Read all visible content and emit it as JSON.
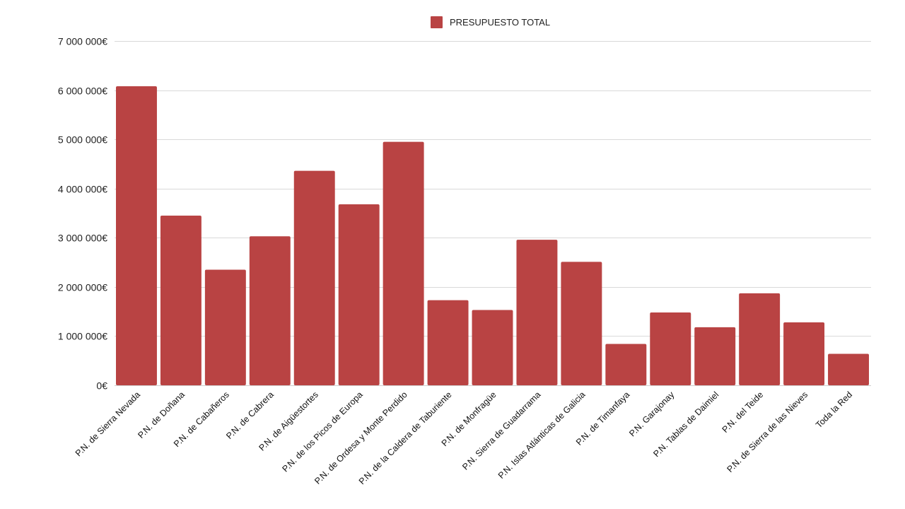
{
  "chart_data": {
    "type": "bar",
    "categories": [
      "P.N. de Sierra Nevada",
      "P.N. de Doñana",
      "P.N. de Cabañeros",
      "P.N. de Cabrera",
      "P.N. de Aigüestortes",
      "P.N. de los Picos de Europa",
      "P.N. de Ordesa y Monte Perdido",
      "P.N. de la Caldera de Taburiente",
      "P.N. de Monfragüe",
      "P.N. Sierra de Guadarrama",
      "P.N. Islas Atlánticas de Galicia",
      "P.N. de Timanfaya",
      "P.N. Garajonay",
      "P.N. Tablas de Daimiel",
      "P.N. del Teide",
      "P.N. de Sierra de las Nieves",
      "Toda la Red"
    ],
    "series": [
      {
        "name": "PRESUPUESTO TOTAL",
        "color": "#b94343",
        "values": [
          6080000,
          3450000,
          2350000,
          3030000,
          4360000,
          3680000,
          4950000,
          1730000,
          1530000,
          2960000,
          2510000,
          840000,
          1480000,
          1180000,
          1870000,
          1280000,
          640000
        ]
      }
    ],
    "y_ticks": [
      {
        "value": 0,
        "label": "0€"
      },
      {
        "value": 1000000,
        "label": "1 000 000€"
      },
      {
        "value": 2000000,
        "label": "2 000 000€"
      },
      {
        "value": 3000000,
        "label": "3 000 000€"
      },
      {
        "value": 4000000,
        "label": "4 000 000€"
      },
      {
        "value": 5000000,
        "label": "5 000 000€"
      },
      {
        "value": 6000000,
        "label": "6 000 000€"
      },
      {
        "value": 7000000,
        "label": "7 000 000€"
      }
    ],
    "ylim": [
      0,
      7000000
    ],
    "grid": true,
    "legend_position": "top-center",
    "title": "",
    "xlabel": "",
    "ylabel": ""
  }
}
